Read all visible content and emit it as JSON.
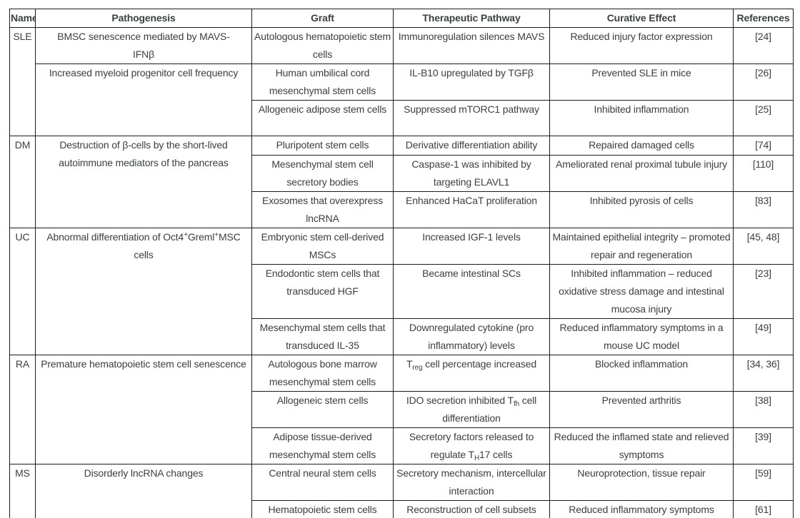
{
  "style": {
    "text_color": "#3a3f42",
    "border_color": "#1c1c1c",
    "background_color": "#ffffff"
  },
  "table": {
    "headers": {
      "name": "Name",
      "pathogenesis": "Pathogenesis",
      "graft": "Graft",
      "therapeutic_pathway": "Therapeutic Pathway",
      "curative_effect": "Curative Effect",
      "references": "References"
    },
    "sections": [
      {
        "name": "SLE",
        "groups": [
          {
            "pathogenesis": "BMSC senescence mediated by MAVS-<br>IFNβ",
            "rows": [
              {
                "graft": "Autologous hematopoietic stem cells",
                "pathway": "Immunoregulation silences MAVS",
                "effect": "Reduced injury factor expression",
                "ref": "[24]"
              }
            ]
          },
          {
            "pathogenesis": "Increased myeloid progenitor cell frequency",
            "rows": [
              {
                "graft": "Human umbilical cord mesenchymal stem cells",
                "pathway": "IL-B10 upregulated by TGFβ",
                "effect": "Prevented SLE in mice",
                "ref": "[26]"
              },
              {
                "graft": "Allogeneic adipose stem cells",
                "pathway": "Suppressed mTORC1 pathway",
                "effect": "Inhibited inflammation",
                "ref": "[25]"
              }
            ]
          }
        ]
      },
      {
        "name": "DM",
        "groups": [
          {
            "pathogenesis": "Destruction of β-cells by the short-lived autoimmune mediators of the pancreas",
            "rows": [
              {
                "graft": "Pluripotent stem cells",
                "pathway": "Derivative differentiation ability",
                "effect": "Repaired damaged cells",
                "ref": "[74]"
              },
              {
                "graft": "Mesenchymal stem cell secretory bodies",
                "pathway": "Caspase-1 was inhibited by targeting ELAVL1",
                "effect": "Ameliorated renal proximal tubule injury",
                "ref": "[110]"
              },
              {
                "graft": "Exosomes that overexpress lncRNA",
                "pathway": "Enhanced HaCaT proliferation",
                "effect": "Inhibited pyrosis of cells",
                "ref": "[83]"
              }
            ]
          }
        ]
      },
      {
        "name": "UC",
        "groups": [
          {
            "pathogenesis": "Abnormal differentiation of Oct4<sup>+</sup>Greml<sup>+</sup>MSC cells",
            "rows": [
              {
                "graft": "Embryonic stem cell-derived MSCs",
                "pathway": "Increased IGF-1 levels",
                "effect": "Maintained epithelial integrity – promoted repair and regeneration",
                "ref": "[45, 48]"
              },
              {
                "graft": "Endodontic stem cells that transduced HGF",
                "pathway": "Became intestinal SCs",
                "effect": "Inhibited inflammation – reduced oxidative stress damage and intestinal mucosa injury",
                "ref": "[23]"
              },
              {
                "graft": "Mesenchymal stem cells that transduced IL-35",
                "pathway": "Downregulated cytokine (pro inflammatory) levels",
                "effect": "Reduced inflammatory symptoms in a mouse UC model",
                "ref": "[49]"
              }
            ]
          }
        ]
      },
      {
        "name": "RA",
        "groups": [
          {
            "pathogenesis": "Premature hematopoietic stem cell senescence",
            "rows": [
              {
                "graft": "Autologous bone marrow mesenchymal stem cells",
                "pathway": "T<sub>reg</sub> cell percentage increased",
                "effect": "Blocked inflammation",
                "ref": "[34, 36]"
              },
              {
                "graft": "Allogeneic stem cells",
                "pathway": "IDO secretion inhibited T<sub>fh</sub> cell differentiation",
                "effect": "Prevented arthritis",
                "ref": "[38]"
              },
              {
                "graft": "Adipose tissue-derived mesenchymal stem cells",
                "pathway": "Secretory factors released to regulate T<sub>H</sub>17 cells",
                "effect": "Reduced the inflamed state and relieved symptoms",
                "ref": "[39]"
              }
            ]
          }
        ]
      },
      {
        "name": "MS",
        "groups": [
          {
            "pathogenesis": "Disorderly lncRNA changes",
            "rows": [
              {
                "graft": "Central neural stem cells",
                "pathway": "Secretory mechanism, intercellular interaction",
                "effect": "Neuroprotection, tissue repair",
                "ref": "[59]"
              },
              {
                "graft": "Hematopoietic stem cells",
                "pathway": "Reconstruction of cell subsets",
                "effect": "Reduced inflammatory symptoms",
                "ref": "[61]"
              }
            ]
          }
        ]
      }
    ]
  }
}
